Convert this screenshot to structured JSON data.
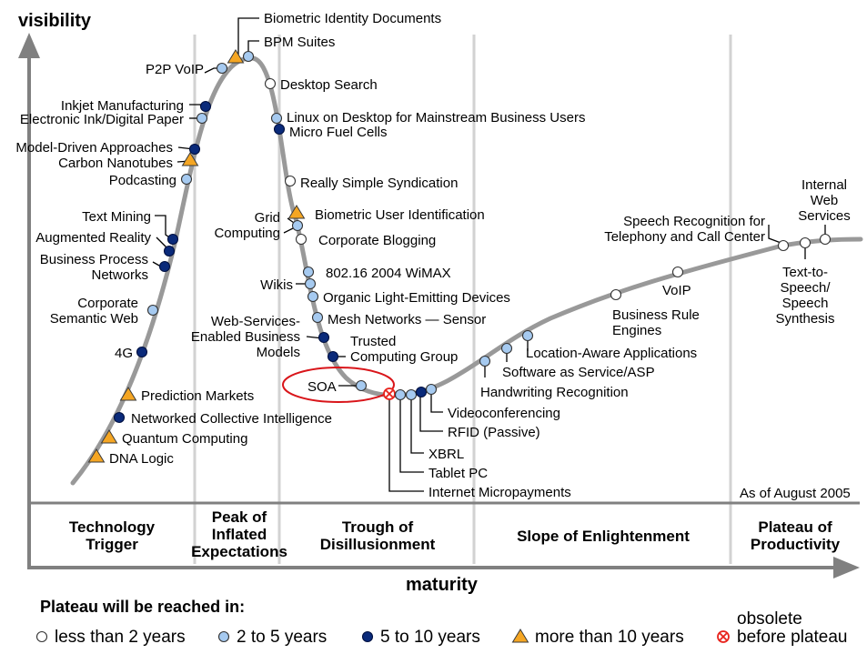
{
  "axes": {
    "y_label": "visibility",
    "x_label": "maturity"
  },
  "as_of": "As of August 2005",
  "phases": [
    {
      "lines": [
        "Technology",
        "Trigger"
      ]
    },
    {
      "lines": [
        "Peak of",
        "Inflated",
        "Expectations"
      ]
    },
    {
      "lines": [
        "Trough of",
        "Disillusionment"
      ]
    },
    {
      "lines": [
        "Slope of Enlightenment"
      ]
    },
    {
      "lines": [
        "Plateau of",
        "Productivity"
      ]
    }
  ],
  "legend": {
    "title": "Plateau will be reached in:",
    "items": [
      {
        "key": "lt2",
        "label": "less than 2 years",
        "color": "#ffffff"
      },
      {
        "key": "2to5",
        "label": "2 to 5 years",
        "color": "#a6caf0"
      },
      {
        "key": "5to10",
        "label": "5 to 10 years",
        "color": "#0a2a7a"
      },
      {
        "key": "gt10",
        "label": "more than 10 years",
        "color": "#f5a623"
      },
      {
        "key": "obsolete",
        "label": "before plateau",
        "label_top": "obsolete",
        "color": "#e8221b"
      }
    ]
  },
  "technologies": [
    {
      "name": "DNA Logic",
      "cat": "gt10"
    },
    {
      "name": "Quantum Computing",
      "cat": "gt10"
    },
    {
      "name": "Networked Collective Intelligence",
      "cat": "5to10"
    },
    {
      "name": "Prediction Markets",
      "cat": "gt10"
    },
    {
      "name": "4G",
      "cat": "5to10"
    },
    {
      "name": "Corporate Semantic Web",
      "cat": "2to5"
    },
    {
      "name": "Business Process Networks",
      "cat": "5to10"
    },
    {
      "name": "Augmented Reality",
      "cat": "5to10"
    },
    {
      "name": "Text Mining",
      "cat": "5to10"
    },
    {
      "name": "Podcasting",
      "cat": "2to5"
    },
    {
      "name": "Carbon Nanotubes",
      "cat": "gt10"
    },
    {
      "name": "Model-Driven Approaches",
      "cat": "5to10"
    },
    {
      "name": "Electronic Ink/Digital Paper",
      "cat": "2to5"
    },
    {
      "name": "Inkjet Manufacturing",
      "cat": "5to10"
    },
    {
      "name": "P2P VoIP",
      "cat": "2to5"
    },
    {
      "name": "Biometric Identity Documents",
      "cat": "gt10"
    },
    {
      "name": "BPM Suites",
      "cat": "2to5"
    },
    {
      "name": "Desktop Search",
      "cat": "lt2"
    },
    {
      "name": "Linux on Desktop for Mainstream Business Users",
      "cat": "2to5"
    },
    {
      "name": "Micro Fuel Cells",
      "cat": "5to10"
    },
    {
      "name": "Really Simple Syndication",
      "cat": "lt2"
    },
    {
      "name": "Biometric User Identification",
      "cat": "gt10"
    },
    {
      "name": "Grid Computing",
      "cat": "2to5"
    },
    {
      "name": "Corporate Blogging",
      "cat": "lt2"
    },
    {
      "name": "802.16 2004 WiMAX",
      "cat": "2to5"
    },
    {
      "name": "Wikis",
      "cat": "2to5"
    },
    {
      "name": "Organic Light-Emitting Devices",
      "cat": "2to5"
    },
    {
      "name": "Mesh Networks — Sensor",
      "cat": "2to5"
    },
    {
      "name": "Web-Services-Enabled Business Models",
      "cat": "5to10"
    },
    {
      "name": "Trusted Computing Group",
      "cat": "5to10"
    },
    {
      "name": "SOA",
      "cat": "2to5"
    },
    {
      "name": "Internet Micropayments",
      "cat": "obsolete"
    },
    {
      "name": "Tablet PC",
      "cat": "2to5"
    },
    {
      "name": "XBRL",
      "cat": "2to5"
    },
    {
      "name": "RFID (Passive)",
      "cat": "5to10"
    },
    {
      "name": "Videoconferencing",
      "cat": "2to5"
    },
    {
      "name": "Handwriting Recognition",
      "cat": "2to5"
    },
    {
      "name": "Software as Service/ASP",
      "cat": "2to5"
    },
    {
      "name": "Location-Aware Applications",
      "cat": "2to5"
    },
    {
      "name": "Business Rule Engines",
      "cat": "lt2"
    },
    {
      "name": "VoIP",
      "cat": "lt2"
    },
    {
      "name": "Speech Recognition for Telephony and Call Center",
      "cat": "lt2"
    },
    {
      "name": "Text-to-Speech/Speech Synthesis",
      "cat": "lt2"
    },
    {
      "name": "Internal Web Services",
      "cat": "lt2"
    }
  ]
}
